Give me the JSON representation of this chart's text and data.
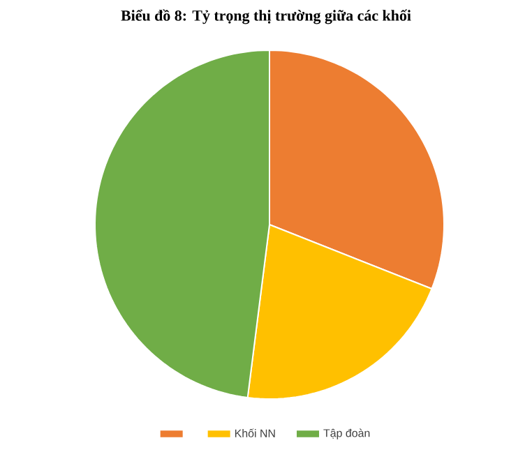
{
  "chart_data": {
    "type": "pie",
    "title": "Biểu đồ 8: Tỷ trọng thị trường giữa các khối",
    "categories": [
      null,
      "Khối NN",
      "Tập đoàn"
    ],
    "values": [
      31,
      21,
      48
    ],
    "colors": [
      "#ed7d31",
      "#ffc000",
      "#70ad47"
    ],
    "legend": "bottom"
  }
}
